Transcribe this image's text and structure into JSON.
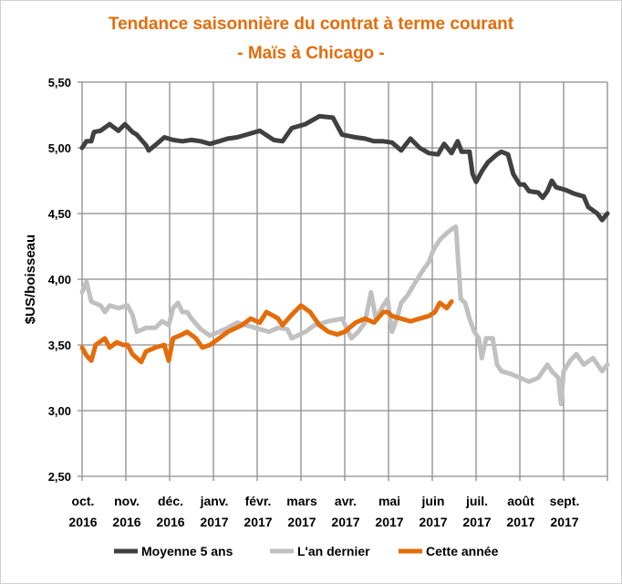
{
  "chart_data": {
    "type": "line",
    "title": "Tendance saisonnière du contrat à terme courant",
    "subtitle": "- Maïs à Chicago -",
    "xlabel": "",
    "ylabel": "$US/boisseau",
    "ylim": [
      2.5,
      5.5
    ],
    "yticks": [
      "2,50",
      "3,00",
      "3,50",
      "4,00",
      "4,50",
      "5,00",
      "5,50"
    ],
    "ytick_values": [
      2.5,
      3.0,
      3.5,
      4.0,
      4.5,
      5.0,
      5.5
    ],
    "x_unit": "months since Oct 1 2016",
    "xlim": [
      0,
      12
    ],
    "xticks": [
      {
        "month": "oct.",
        "year": "2016"
      },
      {
        "month": "nov.",
        "year": "2016"
      },
      {
        "month": "déc.",
        "year": "2016"
      },
      {
        "month": "janv.",
        "year": "2017"
      },
      {
        "month": "févr.",
        "year": "2017"
      },
      {
        "month": "mars",
        "year": "2017"
      },
      {
        "month": "avr.",
        "year": "2017"
      },
      {
        "month": "mai",
        "year": "2017"
      },
      {
        "month": "juin",
        "year": "2017"
      },
      {
        "month": "juil.",
        "year": "2017"
      },
      {
        "month": "août",
        "year": "2017"
      },
      {
        "month": "sept.",
        "year": "2017"
      }
    ],
    "grid": true,
    "legend_position": "bottom",
    "series": [
      {
        "name": "Moyenne 5 ans",
        "color": "#404040",
        "points": [
          [
            0,
            5.0
          ],
          [
            0.1,
            5.05
          ],
          [
            0.21,
            5.05
          ],
          [
            0.27,
            5.12
          ],
          [
            0.42,
            5.13
          ],
          [
            0.63,
            5.18
          ],
          [
            0.83,
            5.13
          ],
          [
            0.98,
            5.18
          ],
          [
            1.15,
            5.12
          ],
          [
            1.25,
            5.1
          ],
          [
            1.46,
            5.02
          ],
          [
            1.52,
            4.98
          ],
          [
            1.67,
            5.02
          ],
          [
            1.88,
            5.08
          ],
          [
            2.08,
            5.06
          ],
          [
            2.29,
            5.05
          ],
          [
            2.5,
            5.06
          ],
          [
            2.71,
            5.05
          ],
          [
            2.92,
            5.03
          ],
          [
            3.13,
            5.05
          ],
          [
            3.33,
            5.07
          ],
          [
            3.54,
            5.08
          ],
          [
            3.75,
            5.1
          ],
          [
            4.06,
            5.13
          ],
          [
            4.38,
            5.06
          ],
          [
            4.58,
            5.05
          ],
          [
            4.79,
            5.15
          ],
          [
            5.1,
            5.18
          ],
          [
            5.42,
            5.24
          ],
          [
            5.73,
            5.23
          ],
          [
            5.94,
            5.1
          ],
          [
            6.25,
            5.08
          ],
          [
            6.46,
            5.07
          ],
          [
            6.67,
            5.05
          ],
          [
            6.88,
            5.05
          ],
          [
            7.08,
            5.04
          ],
          [
            7.29,
            4.98
          ],
          [
            7.5,
            5.07
          ],
          [
            7.71,
            5.0
          ],
          [
            7.92,
            4.96
          ],
          [
            8.13,
            4.95
          ],
          [
            8.27,
            5.03
          ],
          [
            8.44,
            4.96
          ],
          [
            8.58,
            5.05
          ],
          [
            8.67,
            4.97
          ],
          [
            8.85,
            4.97
          ],
          [
            8.92,
            4.8
          ],
          [
            9.0,
            4.74
          ],
          [
            9.13,
            4.82
          ],
          [
            9.27,
            4.89
          ],
          [
            9.48,
            4.95
          ],
          [
            9.58,
            4.97
          ],
          [
            9.73,
            4.95
          ],
          [
            9.85,
            4.8
          ],
          [
            10.0,
            4.72
          ],
          [
            10.1,
            4.72
          ],
          [
            10.21,
            4.67
          ],
          [
            10.42,
            4.66
          ],
          [
            10.52,
            4.62
          ],
          [
            10.63,
            4.67
          ],
          [
            10.73,
            4.75
          ],
          [
            10.83,
            4.7
          ],
          [
            11.04,
            4.68
          ],
          [
            11.25,
            4.65
          ],
          [
            11.46,
            4.63
          ],
          [
            11.56,
            4.55
          ],
          [
            11.77,
            4.5
          ],
          [
            11.88,
            4.45
          ],
          [
            12.0,
            4.5
          ]
        ]
      },
      {
        "name": "L'an dernier",
        "color": "#c0c0c0",
        "points": [
          [
            0,
            3.9
          ],
          [
            0.1,
            3.98
          ],
          [
            0.21,
            3.83
          ],
          [
            0.42,
            3.8
          ],
          [
            0.52,
            3.75
          ],
          [
            0.63,
            3.8
          ],
          [
            0.83,
            3.78
          ],
          [
            1.04,
            3.8
          ],
          [
            1.15,
            3.73
          ],
          [
            1.25,
            3.6
          ],
          [
            1.46,
            3.63
          ],
          [
            1.67,
            3.63
          ],
          [
            1.83,
            3.68
          ],
          [
            1.98,
            3.65
          ],
          [
            2.08,
            3.78
          ],
          [
            2.19,
            3.82
          ],
          [
            2.29,
            3.75
          ],
          [
            2.4,
            3.75
          ],
          [
            2.5,
            3.7
          ],
          [
            2.71,
            3.62
          ],
          [
            2.92,
            3.57
          ],
          [
            3.13,
            3.6
          ],
          [
            3.33,
            3.63
          ],
          [
            3.54,
            3.67
          ],
          [
            3.96,
            3.63
          ],
          [
            4.27,
            3.6
          ],
          [
            4.48,
            3.63
          ],
          [
            4.69,
            3.62
          ],
          [
            4.79,
            3.55
          ],
          [
            5.1,
            3.6
          ],
          [
            5.31,
            3.65
          ],
          [
            5.63,
            3.68
          ],
          [
            5.94,
            3.7
          ],
          [
            6.15,
            3.55
          ],
          [
            6.31,
            3.6
          ],
          [
            6.46,
            3.67
          ],
          [
            6.6,
            3.9
          ],
          [
            6.71,
            3.7
          ],
          [
            6.88,
            3.8
          ],
          [
            6.98,
            3.85
          ],
          [
            7.08,
            3.6
          ],
          [
            7.19,
            3.7
          ],
          [
            7.29,
            3.82
          ],
          [
            7.44,
            3.88
          ],
          [
            7.6,
            3.97
          ],
          [
            7.81,
            4.08
          ],
          [
            7.92,
            4.13
          ],
          [
            8.02,
            4.22
          ],
          [
            8.17,
            4.3
          ],
          [
            8.33,
            4.35
          ],
          [
            8.44,
            4.38
          ],
          [
            8.54,
            4.4
          ],
          [
            8.65,
            3.85
          ],
          [
            8.75,
            3.82
          ],
          [
            8.85,
            3.7
          ],
          [
            8.96,
            3.6
          ],
          [
            9.06,
            3.55
          ],
          [
            9.13,
            3.4
          ],
          [
            9.23,
            3.55
          ],
          [
            9.38,
            3.55
          ],
          [
            9.48,
            3.35
          ],
          [
            9.58,
            3.3
          ],
          [
            9.79,
            3.28
          ],
          [
            10.0,
            3.25
          ],
          [
            10.21,
            3.22
          ],
          [
            10.42,
            3.25
          ],
          [
            10.63,
            3.35
          ],
          [
            10.73,
            3.3
          ],
          [
            10.88,
            3.25
          ],
          [
            10.94,
            3.05
          ],
          [
            11.0,
            3.3
          ],
          [
            11.15,
            3.38
          ],
          [
            11.29,
            3.43
          ],
          [
            11.46,
            3.35
          ],
          [
            11.67,
            3.4
          ],
          [
            11.88,
            3.3
          ],
          [
            12.0,
            3.35
          ]
        ]
      },
      {
        "name": "Cette année",
        "color": "#e46c0a",
        "points": [
          [
            0,
            3.48
          ],
          [
            0.1,
            3.42
          ],
          [
            0.21,
            3.38
          ],
          [
            0.31,
            3.5
          ],
          [
            0.52,
            3.55
          ],
          [
            0.63,
            3.48
          ],
          [
            0.79,
            3.52
          ],
          [
            0.94,
            3.5
          ],
          [
            1.04,
            3.5
          ],
          [
            1.15,
            3.43
          ],
          [
            1.25,
            3.4
          ],
          [
            1.35,
            3.37
          ],
          [
            1.46,
            3.45
          ],
          [
            1.67,
            3.48
          ],
          [
            1.88,
            3.5
          ],
          [
            1.98,
            3.38
          ],
          [
            2.08,
            3.55
          ],
          [
            2.29,
            3.58
          ],
          [
            2.4,
            3.6
          ],
          [
            2.6,
            3.55
          ],
          [
            2.75,
            3.48
          ],
          [
            2.92,
            3.5
          ],
          [
            3.13,
            3.55
          ],
          [
            3.33,
            3.6
          ],
          [
            3.65,
            3.65
          ],
          [
            3.85,
            3.7
          ],
          [
            4.06,
            3.67
          ],
          [
            4.21,
            3.75
          ],
          [
            4.38,
            3.72
          ],
          [
            4.48,
            3.7
          ],
          [
            4.58,
            3.65
          ],
          [
            4.79,
            3.73
          ],
          [
            5.0,
            3.8
          ],
          [
            5.21,
            3.75
          ],
          [
            5.42,
            3.65
          ],
          [
            5.63,
            3.6
          ],
          [
            5.83,
            3.58
          ],
          [
            6.0,
            3.6
          ],
          [
            6.25,
            3.67
          ],
          [
            6.46,
            3.7
          ],
          [
            6.67,
            3.67
          ],
          [
            6.88,
            3.75
          ],
          [
            6.98,
            3.75
          ],
          [
            7.08,
            3.72
          ],
          [
            7.29,
            3.7
          ],
          [
            7.5,
            3.68
          ],
          [
            7.71,
            3.7
          ],
          [
            7.92,
            3.72
          ],
          [
            8.06,
            3.75
          ],
          [
            8.17,
            3.82
          ],
          [
            8.33,
            3.78
          ],
          [
            8.44,
            3.83
          ]
        ]
      }
    ]
  }
}
